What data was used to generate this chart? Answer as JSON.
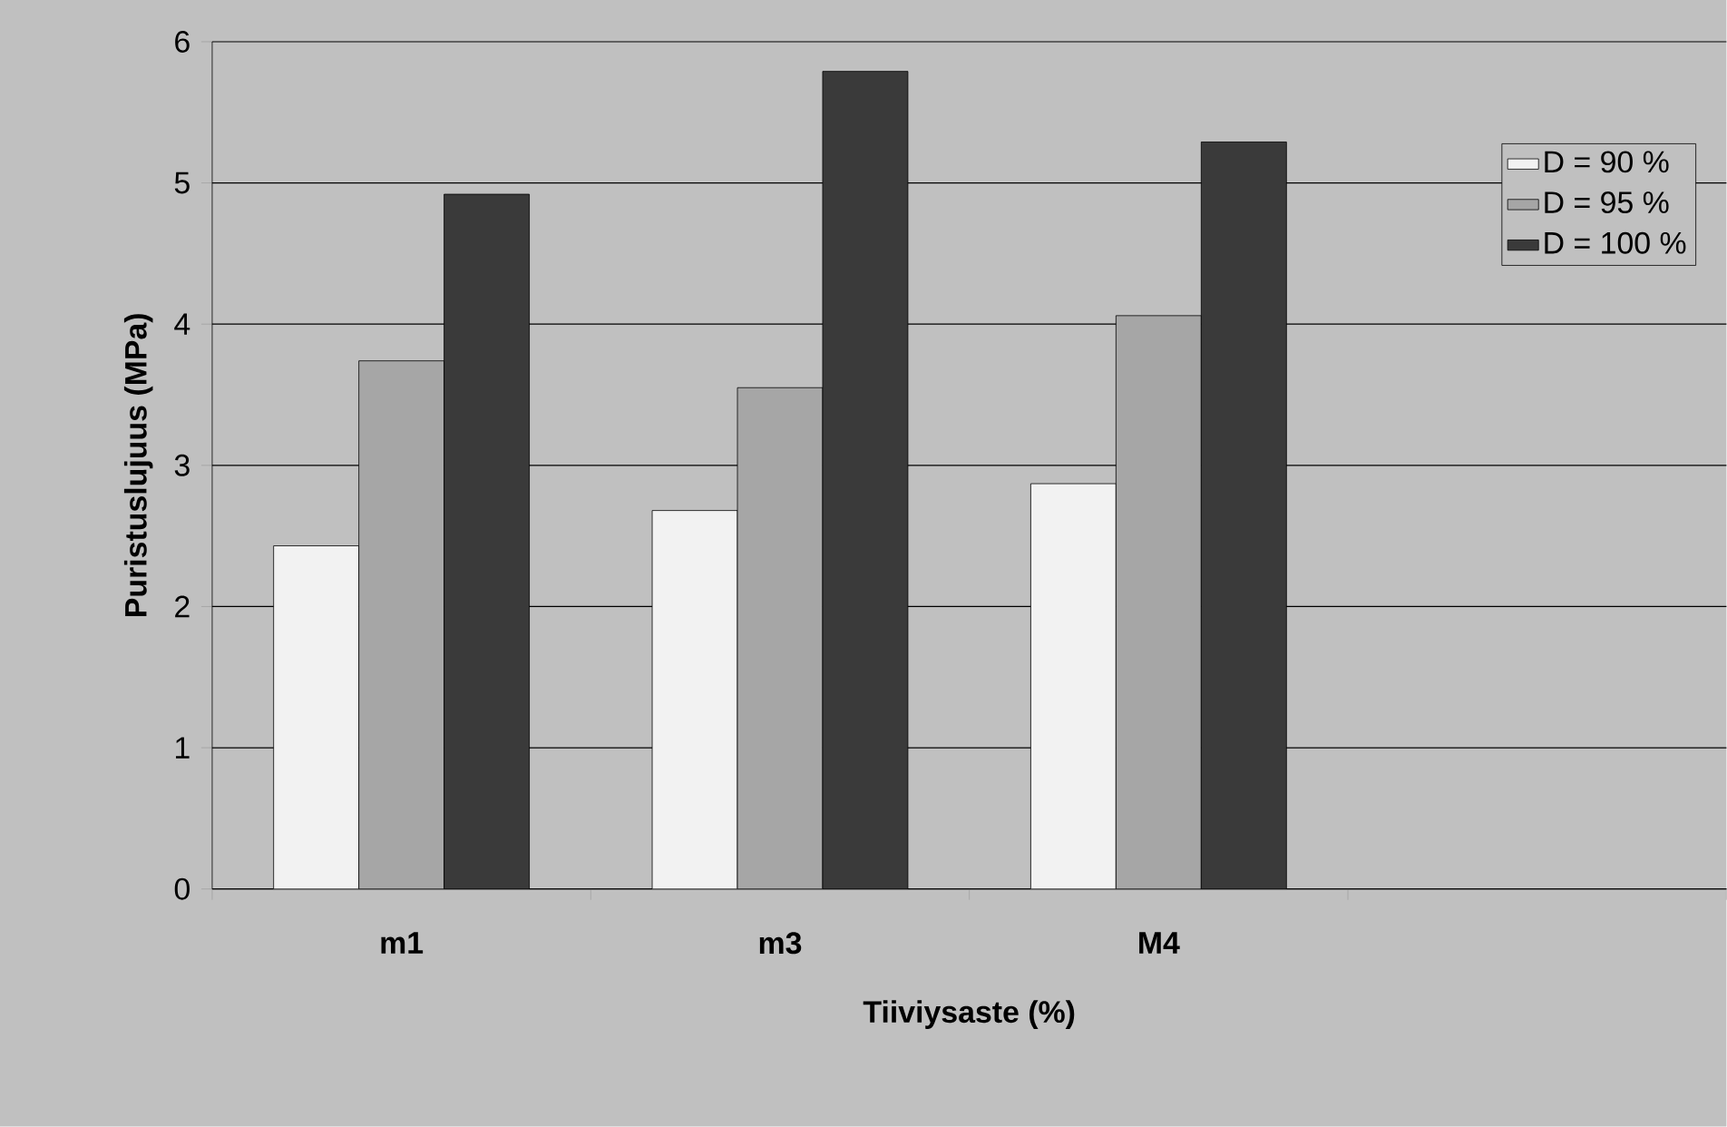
{
  "chart_data": {
    "type": "bar",
    "xlabel": "Tiiviysaste (%)",
    "ylabel": "Puristuslujuus (MPa)",
    "categories": [
      "m1",
      "m3",
      "M4",
      null
    ],
    "series": [
      {
        "name": "D = 90 %",
        "color": "#f2f2f2",
        "values": [
          2.43,
          2.68,
          2.87,
          null
        ]
      },
      {
        "name": "D = 95 %",
        "color": "#a6a6a6",
        "values": [
          3.74,
          3.55,
          4.06,
          null
        ]
      },
      {
        "name": "D = 100 %",
        "color": "#3a3a3a",
        "values": [
          4.92,
          5.79,
          5.29,
          null
        ]
      }
    ],
    "ylim": [
      0,
      6
    ],
    "yticks": [
      0,
      1,
      2,
      3,
      4,
      5,
      6
    ],
    "grid": "y",
    "legend": "right"
  }
}
